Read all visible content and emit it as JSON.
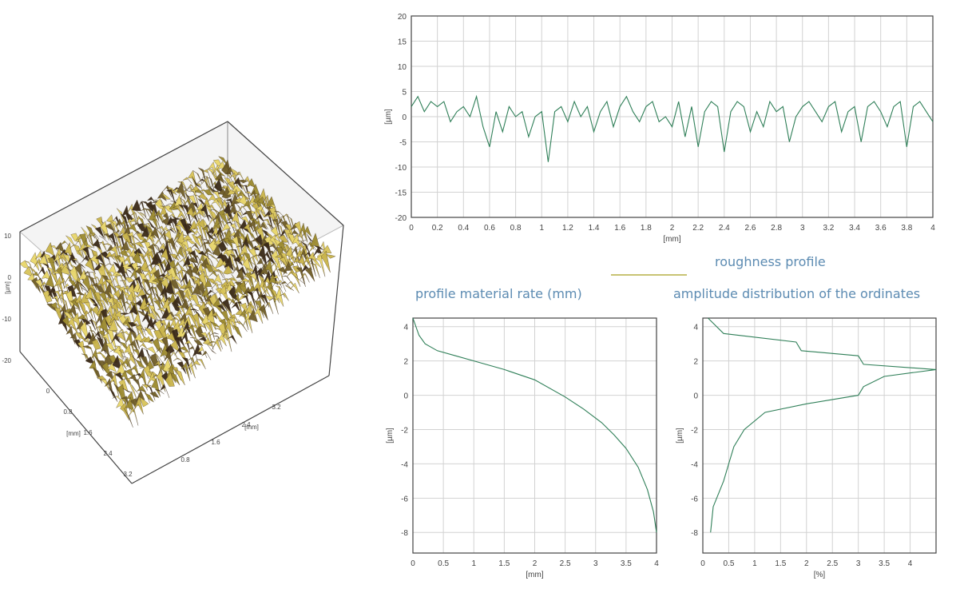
{
  "colors": {
    "profile_line": "#2f7f58",
    "legend_line": "#c8c474",
    "title_text": "#5c8bb2",
    "grid": "#d2d2d2",
    "axis": "#444444",
    "surface_low": "#3a2a18",
    "surface_mid": "#9b8a2e",
    "surface_high": "#e8d66a"
  },
  "labels": {
    "roughness_profile": "roughness profile",
    "material_rate_title": "profile material rate (mm)",
    "amplitude_title": "amplitude distribution of the ordinates"
  },
  "chart_data": [
    {
      "id": "surface-3d",
      "type": "surface",
      "x_ticks": [
        "0.8",
        "1.6",
        "2.4",
        "3.2"
      ],
      "y_ticks": [
        "0",
        "0.8",
        "1.6",
        "2.4",
        "3.2"
      ],
      "z_ticks": [
        "10",
        "0",
        "-10",
        "-20"
      ],
      "xlabel": "[mm]",
      "ylabel": "[mm]",
      "zlabel": "[µm]"
    },
    {
      "id": "roughness-profile",
      "type": "line",
      "xlabel": "[mm]",
      "ylabel": "[µm]",
      "xlim": [
        0,
        4
      ],
      "ylim": [
        -20,
        20
      ],
      "x_ticks": [
        0,
        0.2,
        0.4,
        0.6,
        0.8,
        1,
        1.2,
        1.4,
        1.6,
        1.8,
        2,
        2.2,
        2.4,
        2.6,
        2.8,
        3,
        3.2,
        3.4,
        3.6,
        3.8,
        4
      ],
      "y_ticks": [
        20,
        15,
        10,
        5,
        0,
        -5,
        -10,
        -15,
        -20
      ],
      "grid": true,
      "series": [
        {
          "name": "roughness profile",
          "x": [
            0,
            0.05,
            0.1,
            0.15,
            0.2,
            0.25,
            0.3,
            0.35,
            0.4,
            0.45,
            0.5,
            0.55,
            0.6,
            0.65,
            0.7,
            0.75,
            0.8,
            0.85,
            0.9,
            0.95,
            1,
            1.05,
            1.1,
            1.15,
            1.2,
            1.25,
            1.3,
            1.35,
            1.4,
            1.45,
            1.5,
            1.55,
            1.6,
            1.65,
            1.7,
            1.75,
            1.8,
            1.85,
            1.9,
            1.95,
            2,
            2.05,
            2.1,
            2.15,
            2.2,
            2.25,
            2.3,
            2.35,
            2.4,
            2.45,
            2.5,
            2.55,
            2.6,
            2.65,
            2.7,
            2.75,
            2.8,
            2.85,
            2.9,
            2.95,
            3,
            3.05,
            3.1,
            3.15,
            3.2,
            3.25,
            3.3,
            3.35,
            3.4,
            3.45,
            3.5,
            3.55,
            3.6,
            3.65,
            3.7,
            3.75,
            3.8,
            3.85,
            3.9,
            3.95,
            4
          ],
          "y": [
            2,
            4,
            1,
            3,
            2,
            3,
            -1,
            1,
            2,
            0,
            4,
            -2,
            -6,
            1,
            -3,
            2,
            0,
            1,
            -4,
            0,
            1,
            -9,
            1,
            2,
            -1,
            3,
            0,
            2,
            -3,
            1,
            3,
            -2,
            2,
            4,
            1,
            -1,
            2,
            3,
            -1,
            0,
            -2,
            3,
            -4,
            2,
            -6,
            1,
            3,
            2,
            -7,
            1,
            3,
            2,
            -3,
            1,
            -2,
            3,
            1,
            2,
            -5,
            0,
            2,
            3,
            1,
            -1,
            2,
            3,
            -3,
            1,
            2,
            -5,
            2,
            3,
            1,
            -2,
            2,
            3,
            -6,
            2,
            3,
            1,
            -1
          ]
        }
      ]
    },
    {
      "id": "material-ratio",
      "type": "line",
      "xlabel": "[mm]",
      "ylabel": "[µm]",
      "xlim": [
        0,
        4
      ],
      "ylim": [
        -9.2,
        4.5
      ],
      "x_ticks": [
        "0",
        "0.5",
        "1",
        "1.5",
        "2",
        "2.5",
        "3",
        "3.5",
        "4"
      ],
      "y_ticks": [
        "4",
        "2",
        "0",
        "-2",
        "-4",
        "-6",
        "-8"
      ],
      "grid": true,
      "series": [
        {
          "x": [
            0,
            0.1,
            0.2,
            0.4,
            0.7,
            1,
            1.5,
            2,
            2.5,
            2.8,
            3.1,
            3.3,
            3.5,
            3.7,
            3.85,
            3.95,
            4
          ],
          "y": [
            4.5,
            3.5,
            3.0,
            2.6,
            2.3,
            2.0,
            1.5,
            0.9,
            -0.1,
            -0.8,
            -1.6,
            -2.3,
            -3.1,
            -4.2,
            -5.5,
            -6.8,
            -8.0
          ]
        }
      ]
    },
    {
      "id": "amplitude-distribution",
      "type": "line",
      "xlabel": "[%]",
      "ylabel": "[µm]",
      "xlim": [
        0,
        4.5
      ],
      "ylim": [
        -9.2,
        4.5
      ],
      "x_ticks": [
        "0",
        "0.5",
        "1",
        "1.5",
        "2",
        "2.5",
        "3",
        "3.5",
        "4"
      ],
      "y_ticks": [
        "4",
        "2",
        "0",
        "-2",
        "-4",
        "-6",
        "-8"
      ],
      "grid": true,
      "series": [
        {
          "x": [
            0.1,
            0.4,
            1.8,
            1.9,
            3.0,
            3.1,
            4.5,
            3.5,
            3.1,
            3.0,
            2.0,
            1.2,
            0.8,
            0.6,
            0.5,
            0.4,
            0.2,
            0.15
          ],
          "y": [
            4.5,
            3.6,
            3.1,
            2.6,
            2.3,
            1.8,
            1.5,
            1.1,
            0.5,
            0.0,
            -0.5,
            -1.0,
            -2.0,
            -3.0,
            -4.0,
            -5.0,
            -6.5,
            -8.0
          ]
        }
      ]
    }
  ]
}
